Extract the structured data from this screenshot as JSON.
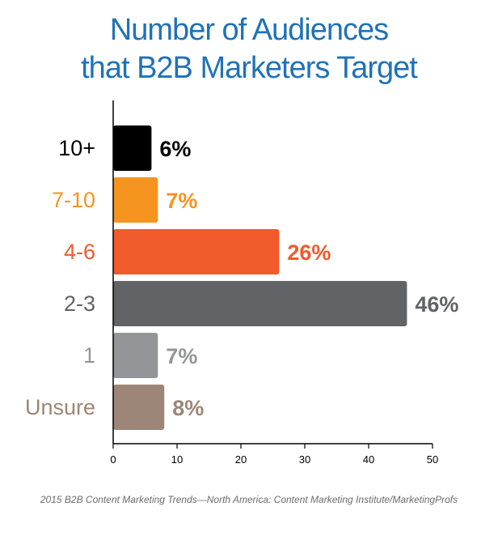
{
  "chart_data": {
    "type": "bar",
    "orientation": "horizontal",
    "title_lines": [
      "Number of Audiences",
      "that B2B Marketers Target"
    ],
    "categories": [
      "10+",
      "7-10",
      "4-6",
      "2-3",
      "1",
      "Unsure"
    ],
    "values": [
      6,
      7,
      26,
      46,
      7,
      8
    ],
    "value_labels": [
      "6%",
      "7%",
      "26%",
      "46%",
      "7%",
      "8%"
    ],
    "colors": [
      "#000000",
      "#f5941f",
      "#f15a2b",
      "#626366",
      "#939598",
      "#9d8577"
    ],
    "label_colors": [
      "#000000",
      "#f5941f",
      "#f15a2b",
      "#626366",
      "#939598",
      "#9d8577"
    ],
    "xlim": [
      0,
      50
    ],
    "xticks": [
      0,
      10,
      20,
      30,
      40,
      50
    ],
    "grid": false,
    "xlabel": "",
    "ylabel": ""
  },
  "source": "2015 B2B Content Marketing Trends—North America: Content Marketing Institute/MarketingProfs"
}
